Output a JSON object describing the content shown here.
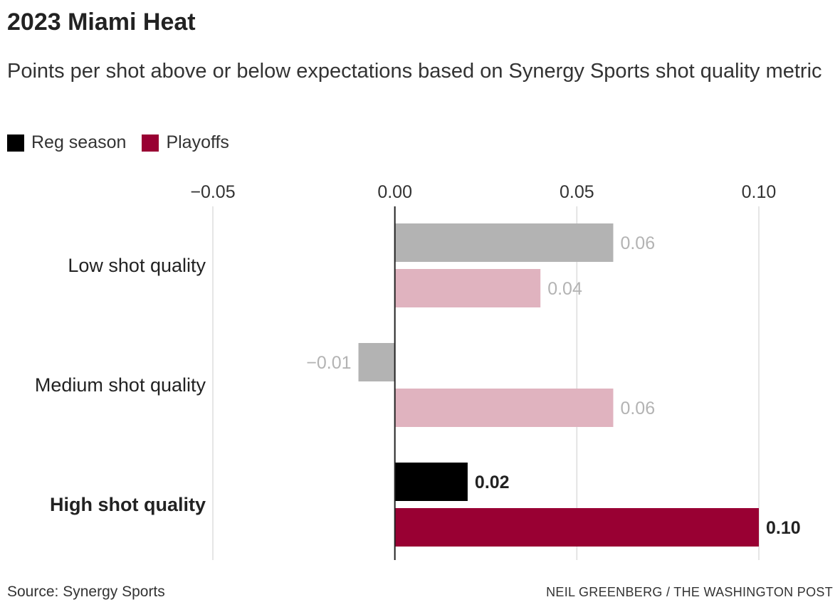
{
  "header": {
    "title": "2023 Miami Heat",
    "subtitle": "Points per shot above or below expectations based on Synergy Sports shot quality metric"
  },
  "footer": {
    "source": "Source: Synergy Sports",
    "credit": "NEIL GREENBERG / THE WASHINGTON POST"
  },
  "colors": {
    "reg_season": "#000000",
    "playoffs": "#990033",
    "reg_season_muted": "#b3b3b3",
    "playoffs_muted": "#e0b3bf",
    "muted_label": "#b3b3b3",
    "gridline": "#dddddd",
    "zero_line": "#222222"
  },
  "chart_data": {
    "type": "bar",
    "orientation": "horizontal",
    "title": "2023 Miami Heat",
    "subtitle": "Points per shot above or below expectations based on Synergy Sports shot quality metric",
    "categories": [
      "Low shot quality",
      "Medium shot quality",
      "High shot quality"
    ],
    "highlighted_category": "High shot quality",
    "series": [
      {
        "name": "Reg season",
        "values": [
          0.06,
          -0.01,
          0.02
        ],
        "labels": [
          "0.06",
          "−0.01",
          "0.02"
        ]
      },
      {
        "name": "Playoffs",
        "values": [
          0.04,
          0.06,
          0.1
        ],
        "labels": [
          "0.04",
          "0.06",
          "0.10"
        ]
      }
    ],
    "xlim": [
      -0.05,
      0.1
    ],
    "xticks": [
      -0.05,
      0.0,
      0.05,
      0.1
    ],
    "xtick_labels": [
      "−0.05",
      "0.00",
      "0.05",
      "0.10"
    ],
    "xlabel": "",
    "ylabel": "",
    "grid": true,
    "legend_position": "top-left"
  }
}
